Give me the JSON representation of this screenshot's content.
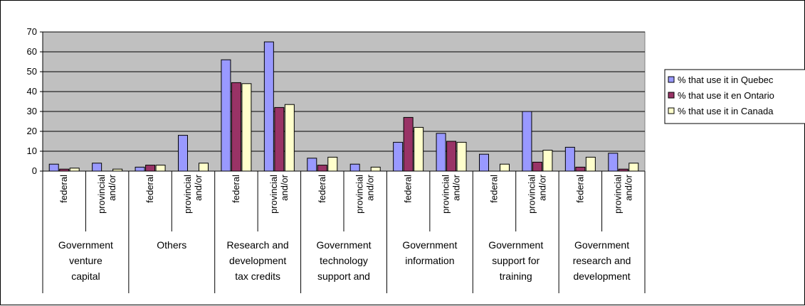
{
  "chart_data": {
    "type": "bar",
    "title": "",
    "xlabel": "",
    "ylabel": "",
    "ylim": [
      0,
      70
    ],
    "ytick_step": 10,
    "grid": true,
    "legend_position": "right",
    "groups": [
      {
        "label_lines": [
          "Government",
          "venture",
          "capital"
        ]
      },
      {
        "label_lines": [
          "Others"
        ]
      },
      {
        "label_lines": [
          "Research and",
          "development",
          "tax credits"
        ]
      },
      {
        "label_lines": [
          "Government",
          "technology",
          "support and"
        ]
      },
      {
        "label_lines": [
          "Government",
          "information"
        ]
      },
      {
        "label_lines": [
          "Government",
          "support for",
          "training"
        ]
      },
      {
        "label_lines": [
          "Government",
          "research and",
          "development"
        ]
      }
    ],
    "sub_categories": [
      {
        "lines": [
          "federal"
        ]
      },
      {
        "lines": [
          "provincial",
          "and/or"
        ]
      }
    ],
    "series": [
      {
        "name": "% that use it in Quebec",
        "color": "#9999ff",
        "values": [
          3.5,
          4,
          2,
          18,
          56,
          65,
          6.5,
          3.5,
          14.5,
          19,
          8.5,
          30,
          12,
          9
        ]
      },
      {
        "name": "% that use it en Ontario",
        "color": "#993366",
        "values": [
          1,
          0,
          3,
          0,
          44.5,
          32,
          3,
          0,
          27,
          15,
          0,
          4.5,
          2,
          1
        ]
      },
      {
        "name": "% that use it in Canada",
        "color": "#ffffcc",
        "values": [
          1.5,
          1,
          3,
          4,
          44,
          33.5,
          7,
          2,
          22,
          14.5,
          3.5,
          10.5,
          7,
          4
        ]
      }
    ]
  },
  "colors": {
    "plot_background": "#c0c0c0",
    "gridline": "#000000",
    "bar_outline": "#000000"
  }
}
